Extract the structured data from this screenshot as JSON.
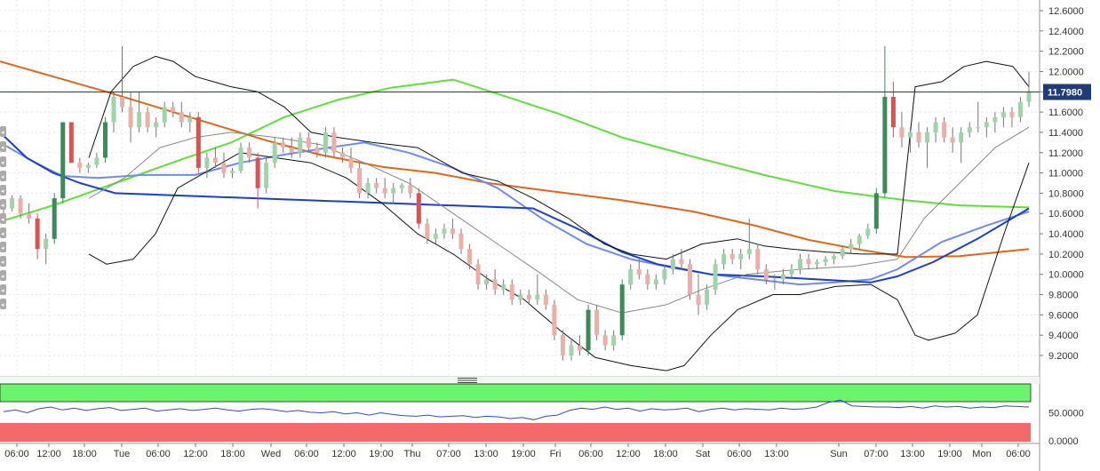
{
  "chart_data": {
    "type": "candlestick",
    "symbol_price_last": "11.7980",
    "x_tick_labels": [
      "06:00",
      "12:00",
      "18:00",
      "Tue",
      "06:00",
      "12:00",
      "18:00",
      "Wed",
      "06:00",
      "12:00",
      "19:00",
      "Thu",
      "07:00",
      "13:00",
      "19:00",
      "Fri",
      "06:00",
      "12:00",
      "18:00",
      "Sat",
      "06:00",
      "13:00",
      "Sun",
      "07:00",
      "13:00",
      "19:00",
      "Mon",
      "06:00"
    ],
    "price_axis": {
      "ticks": [
        "9.2000",
        "9.4000",
        "9.6000",
        "9.8000",
        "10.0000",
        "10.2000",
        "10.4000",
        "10.6000",
        "10.8000",
        "11.0000",
        "11.2000",
        "11.4000",
        "11.6000",
        "11.8000",
        "12.0000",
        "12.2000",
        "12.4000",
        "12.6000"
      ],
      "ylim": [
        9.0,
        12.7
      ]
    },
    "indicator_axis": {
      "ticks": [
        "50.0000",
        "0.0000"
      ],
      "ylim": [
        0,
        100
      ],
      "overbought_zone": [
        70,
        100
      ],
      "oversold_zone": [
        0,
        30
      ]
    },
    "candles_ohlc_approx": [
      [
        10.7,
        10.72,
        10.6,
        10.65
      ],
      [
        10.65,
        10.78,
        10.62,
        10.75
      ],
      [
        10.75,
        10.78,
        10.55,
        10.6
      ],
      [
        10.6,
        10.7,
        10.5,
        10.55
      ],
      [
        10.55,
        10.6,
        10.15,
        10.25
      ],
      [
        10.25,
        10.4,
        10.1,
        10.35
      ],
      [
        10.35,
        10.8,
        10.3,
        10.75
      ],
      [
        10.75,
        11.5,
        10.7,
        11.5
      ],
      [
        11.5,
        11.5,
        11.1,
        11.1
      ],
      [
        11.1,
        11.15,
        11.0,
        11.05
      ],
      [
        11.05,
        11.1,
        11.0,
        11.08
      ],
      [
        11.08,
        11.2,
        11.05,
        11.15
      ],
      [
        11.15,
        11.55,
        11.1,
        11.5
      ],
      [
        11.5,
        11.8,
        11.4,
        11.75
      ],
      [
        11.75,
        12.25,
        11.6,
        11.65
      ],
      [
        11.65,
        11.8,
        11.3,
        11.45
      ],
      [
        11.45,
        11.8,
        11.4,
        11.6
      ],
      [
        11.6,
        11.65,
        11.4,
        11.45
      ],
      [
        11.45,
        11.55,
        11.35,
        11.5
      ],
      [
        11.5,
        11.7,
        11.45,
        11.65
      ],
      [
        11.65,
        11.7,
        11.55,
        11.6
      ],
      [
        11.6,
        11.7,
        11.45,
        11.5
      ],
      [
        11.5,
        11.6,
        11.4,
        11.55
      ],
      [
        11.55,
        11.6,
        11.0,
        11.05
      ],
      [
        11.05,
        11.2,
        10.95,
        11.15
      ],
      [
        11.15,
        11.25,
        11.05,
        11.1
      ],
      [
        11.1,
        11.2,
        10.95,
        11.0
      ],
      [
        11.0,
        11.05,
        10.95,
        11.02
      ],
      [
        11.02,
        11.3,
        11.0,
        11.25
      ],
      [
        11.25,
        11.3,
        11.1,
        11.15
      ],
      [
        11.15,
        11.2,
        10.65,
        10.85
      ],
      [
        10.85,
        11.15,
        10.8,
        11.1
      ],
      [
        11.1,
        11.35,
        11.05,
        11.3
      ],
      [
        11.3,
        11.35,
        11.2,
        11.25
      ],
      [
        11.25,
        11.35,
        11.15,
        11.2
      ],
      [
        11.2,
        11.4,
        11.15,
        11.35
      ],
      [
        11.35,
        11.4,
        11.2,
        11.25
      ],
      [
        11.25,
        11.3,
        11.15,
        11.2
      ],
      [
        11.2,
        11.45,
        11.15,
        11.4
      ],
      [
        11.4,
        11.45,
        11.15,
        11.2
      ],
      [
        11.2,
        11.25,
        11.1,
        11.15
      ],
      [
        11.15,
        11.25,
        11.0,
        11.05
      ],
      [
        11.05,
        11.1,
        10.75,
        10.8
      ],
      [
        10.8,
        10.95,
        10.75,
        10.9
      ],
      [
        10.9,
        10.95,
        10.8,
        10.85
      ],
      [
        10.85,
        10.95,
        10.75,
        10.8
      ],
      [
        10.8,
        10.9,
        10.7,
        10.85
      ],
      [
        10.85,
        10.9,
        10.8,
        10.88
      ],
      [
        10.88,
        10.95,
        10.75,
        10.8
      ],
      [
        10.8,
        10.85,
        10.45,
        10.5
      ],
      [
        10.5,
        10.55,
        10.3,
        10.35
      ],
      [
        10.35,
        10.45,
        10.3,
        10.4
      ],
      [
        10.4,
        10.5,
        10.35,
        10.45
      ],
      [
        10.45,
        10.55,
        10.35,
        10.4
      ],
      [
        10.4,
        10.45,
        10.2,
        10.25
      ],
      [
        10.25,
        10.3,
        10.05,
        10.1
      ],
      [
        10.1,
        10.15,
        9.85,
        9.9
      ],
      [
        9.9,
        10.0,
        9.85,
        9.95
      ],
      [
        9.95,
        10.05,
        9.8,
        9.85
      ],
      [
        9.85,
        9.95,
        9.8,
        9.9
      ],
      [
        9.9,
        9.95,
        9.7,
        9.75
      ],
      [
        9.75,
        9.85,
        9.7,
        9.8
      ],
      [
        9.8,
        9.85,
        9.7,
        9.75
      ],
      [
        9.75,
        10.0,
        9.7,
        9.8
      ],
      [
        9.8,
        9.85,
        9.65,
        9.7
      ],
      [
        9.7,
        9.75,
        9.35,
        9.4
      ],
      [
        9.4,
        9.45,
        9.15,
        9.2
      ],
      [
        9.2,
        9.35,
        9.15,
        9.3
      ],
      [
        9.3,
        9.4,
        9.2,
        9.25
      ],
      [
        9.25,
        9.7,
        9.2,
        9.65
      ],
      [
        9.65,
        9.7,
        9.35,
        9.4
      ],
      [
        9.4,
        9.45,
        9.25,
        9.3
      ],
      [
        9.3,
        9.45,
        9.25,
        9.4
      ],
      [
        9.4,
        9.95,
        9.35,
        9.9
      ],
      [
        9.9,
        10.1,
        9.85,
        10.05
      ],
      [
        10.05,
        10.15,
        9.95,
        10.0
      ],
      [
        10.0,
        10.05,
        9.85,
        9.9
      ],
      [
        9.9,
        10.0,
        9.85,
        9.95
      ],
      [
        9.95,
        10.1,
        9.9,
        10.05
      ],
      [
        10.05,
        10.2,
        10.0,
        10.15
      ],
      [
        10.15,
        10.25,
        10.05,
        10.1
      ],
      [
        10.1,
        10.15,
        9.75,
        9.8
      ],
      [
        9.8,
        10.0,
        9.6,
        9.7
      ],
      [
        9.7,
        9.9,
        9.65,
        9.85
      ],
      [
        9.85,
        10.15,
        9.8,
        10.1
      ],
      [
        10.1,
        10.25,
        10.05,
        10.2
      ],
      [
        10.2,
        10.25,
        10.1,
        10.15
      ],
      [
        10.15,
        10.25,
        10.05,
        10.2
      ],
      [
        10.2,
        10.55,
        10.15,
        10.25
      ],
      [
        10.25,
        10.3,
        10.0,
        10.05
      ],
      [
        10.05,
        10.1,
        9.9,
        9.95
      ],
      [
        9.95,
        10.0,
        9.85,
        9.95
      ],
      [
        9.95,
        10.05,
        9.9,
        10.0
      ],
      [
        10.0,
        10.1,
        9.95,
        10.05
      ],
      [
        10.05,
        10.2,
        10.0,
        10.15
      ],
      [
        10.15,
        10.2,
        10.05,
        10.1
      ],
      [
        10.1,
        10.15,
        10.05,
        10.12
      ],
      [
        10.12,
        10.18,
        10.08,
        10.15
      ],
      [
        10.15,
        10.2,
        10.1,
        10.18
      ],
      [
        10.18,
        10.28,
        10.15,
        10.25
      ],
      [
        10.25,
        10.35,
        10.2,
        10.3
      ],
      [
        10.3,
        10.4,
        10.25,
        10.38
      ],
      [
        10.38,
        10.5,
        10.35,
        10.45
      ],
      [
        10.45,
        10.85,
        10.4,
        10.8
      ],
      [
        10.8,
        12.25,
        10.75,
        11.75
      ],
      [
        11.75,
        11.9,
        11.35,
        11.45
      ],
      [
        11.45,
        11.6,
        11.25,
        11.35
      ],
      [
        11.35,
        11.45,
        11.2,
        11.4
      ],
      [
        11.4,
        11.5,
        11.25,
        11.3
      ],
      [
        11.3,
        11.45,
        11.05,
        11.4
      ],
      [
        11.4,
        11.55,
        11.3,
        11.5
      ],
      [
        11.5,
        11.55,
        11.3,
        11.35
      ],
      [
        11.35,
        11.45,
        11.2,
        11.3
      ],
      [
        11.3,
        11.45,
        11.1,
        11.4
      ],
      [
        11.4,
        11.5,
        11.35,
        11.45
      ],
      [
        11.45,
        11.7,
        11.4,
        11.45
      ],
      [
        11.45,
        11.55,
        11.35,
        11.5
      ],
      [
        11.5,
        11.6,
        11.4,
        11.55
      ],
      [
        11.55,
        11.65,
        11.45,
        11.6
      ],
      [
        11.6,
        11.65,
        11.45,
        11.55
      ],
      [
        11.55,
        11.75,
        11.5,
        11.7
      ],
      [
        11.7,
        12.0,
        11.65,
        11.8
      ]
    ]
  },
  "colors": {
    "bull": "#3a8a5a",
    "bull_light": "#9fd4a8",
    "bear": "#d9534f",
    "bear_light": "#eab0a7",
    "ma_blue": "#1a3fcf",
    "ma_lightblue": "#6f8ce8",
    "ma_orange": "#e0661a",
    "ma_green": "#5ee03a",
    "bollinger": "#111111",
    "bollinger_mid": "#888888",
    "price_line": "#1f3b78",
    "price_badge": "#1f3b78",
    "rsi_line": "#2850c8",
    "rsi_overbought": "#6cf56c",
    "rsi_oversold": "#f46a6a",
    "grid": "#e4e4e4"
  }
}
